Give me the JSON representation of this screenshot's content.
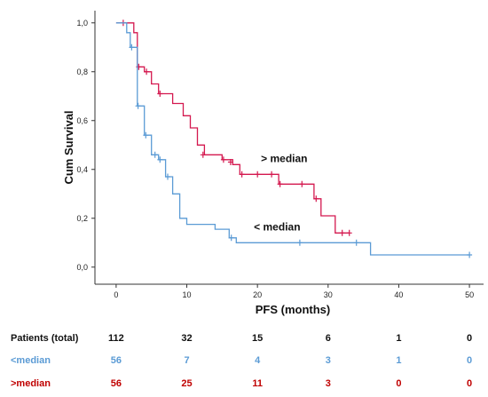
{
  "chart_data": {
    "type": "line",
    "chart_kind": "kaplan-meier",
    "xlabel": "PFS (months)",
    "ylabel": "Cum Survival",
    "xlim": [
      -3,
      52
    ],
    "ylim": [
      -0.07,
      1.05
    ],
    "x_ticks": [
      0,
      10,
      20,
      30,
      40,
      50
    ],
    "y_ticks": [
      0.0,
      0.2,
      0.4,
      0.6,
      0.8,
      1.0
    ],
    "y_tick_labels": [
      "0,0",
      "0,2",
      "0,4",
      "0,6",
      "0,8",
      "1,0"
    ],
    "grid": false,
    "colors": {
      "above": "#d4184f",
      "below": "#5b9bd5",
      "axis": "#333333"
    },
    "series": [
      {
        "name": "> median",
        "color": "#d4184f",
        "label_at": [
          20.5,
          0.43
        ],
        "steps": [
          [
            0,
            1.0
          ],
          [
            2,
            1.0
          ],
          [
            2.5,
            0.96
          ],
          [
            3,
            0.82
          ],
          [
            4,
            0.8
          ],
          [
            5,
            0.75
          ],
          [
            6,
            0.71
          ],
          [
            8,
            0.67
          ],
          [
            9.5,
            0.62
          ],
          [
            10.5,
            0.57
          ],
          [
            11.5,
            0.5
          ],
          [
            12.5,
            0.46
          ],
          [
            15,
            0.44
          ],
          [
            16.5,
            0.42
          ],
          [
            17.5,
            0.38
          ],
          [
            23,
            0.34
          ],
          [
            28,
            0.28
          ],
          [
            29,
            0.21
          ],
          [
            31,
            0.14
          ],
          [
            33,
            0.14
          ]
        ],
        "censored": [
          [
            1,
            1.0
          ],
          [
            3.2,
            0.82
          ],
          [
            4.3,
            0.8
          ],
          [
            6.2,
            0.71
          ],
          [
            12.3,
            0.46
          ],
          [
            15.2,
            0.44
          ],
          [
            16.2,
            0.43
          ],
          [
            17.8,
            0.38
          ],
          [
            20,
            0.38
          ],
          [
            22,
            0.38
          ],
          [
            23.2,
            0.34
          ],
          [
            26.3,
            0.34
          ],
          [
            28.3,
            0.28
          ],
          [
            32,
            0.14
          ],
          [
            33,
            0.14
          ]
        ]
      },
      {
        "name": "< median",
        "color": "#5b9bd5",
        "label_at": [
          19.5,
          0.15
        ],
        "steps": [
          [
            0,
            1.0
          ],
          [
            1.5,
            0.96
          ],
          [
            2,
            0.9
          ],
          [
            3,
            0.66
          ],
          [
            4,
            0.54
          ],
          [
            5,
            0.46
          ],
          [
            6,
            0.44
          ],
          [
            7,
            0.37
          ],
          [
            8,
            0.3
          ],
          [
            9,
            0.2
          ],
          [
            10,
            0.175
          ],
          [
            14,
            0.155
          ],
          [
            16,
            0.12
          ],
          [
            17,
            0.1
          ],
          [
            36,
            0.05
          ],
          [
            50,
            0.05
          ]
        ],
        "censored": [
          [
            2.2,
            0.9
          ],
          [
            3.1,
            0.66
          ],
          [
            4.2,
            0.54
          ],
          [
            5.5,
            0.46
          ],
          [
            6.2,
            0.44
          ],
          [
            7.3,
            0.37
          ],
          [
            16.3,
            0.12
          ],
          [
            26,
            0.1
          ],
          [
            34,
            0.1
          ],
          [
            50,
            0.05
          ]
        ]
      }
    ]
  },
  "risk_table": {
    "times": [
      0,
      10,
      20,
      30,
      40,
      50
    ],
    "rows": [
      {
        "label": "Patients (total)",
        "color": "#111111",
        "values": [
          "112",
          "32",
          "15",
          "6",
          "1",
          "0"
        ]
      },
      {
        "label": "<median",
        "color": "#5b9bd5",
        "values": [
          "56",
          "7",
          "4",
          "3",
          "1",
          "0"
        ]
      },
      {
        "label": ">median",
        "color": "#c00000",
        "values": [
          "56",
          "25",
          "11",
          "3",
          "0",
          "0"
        ]
      }
    ]
  }
}
